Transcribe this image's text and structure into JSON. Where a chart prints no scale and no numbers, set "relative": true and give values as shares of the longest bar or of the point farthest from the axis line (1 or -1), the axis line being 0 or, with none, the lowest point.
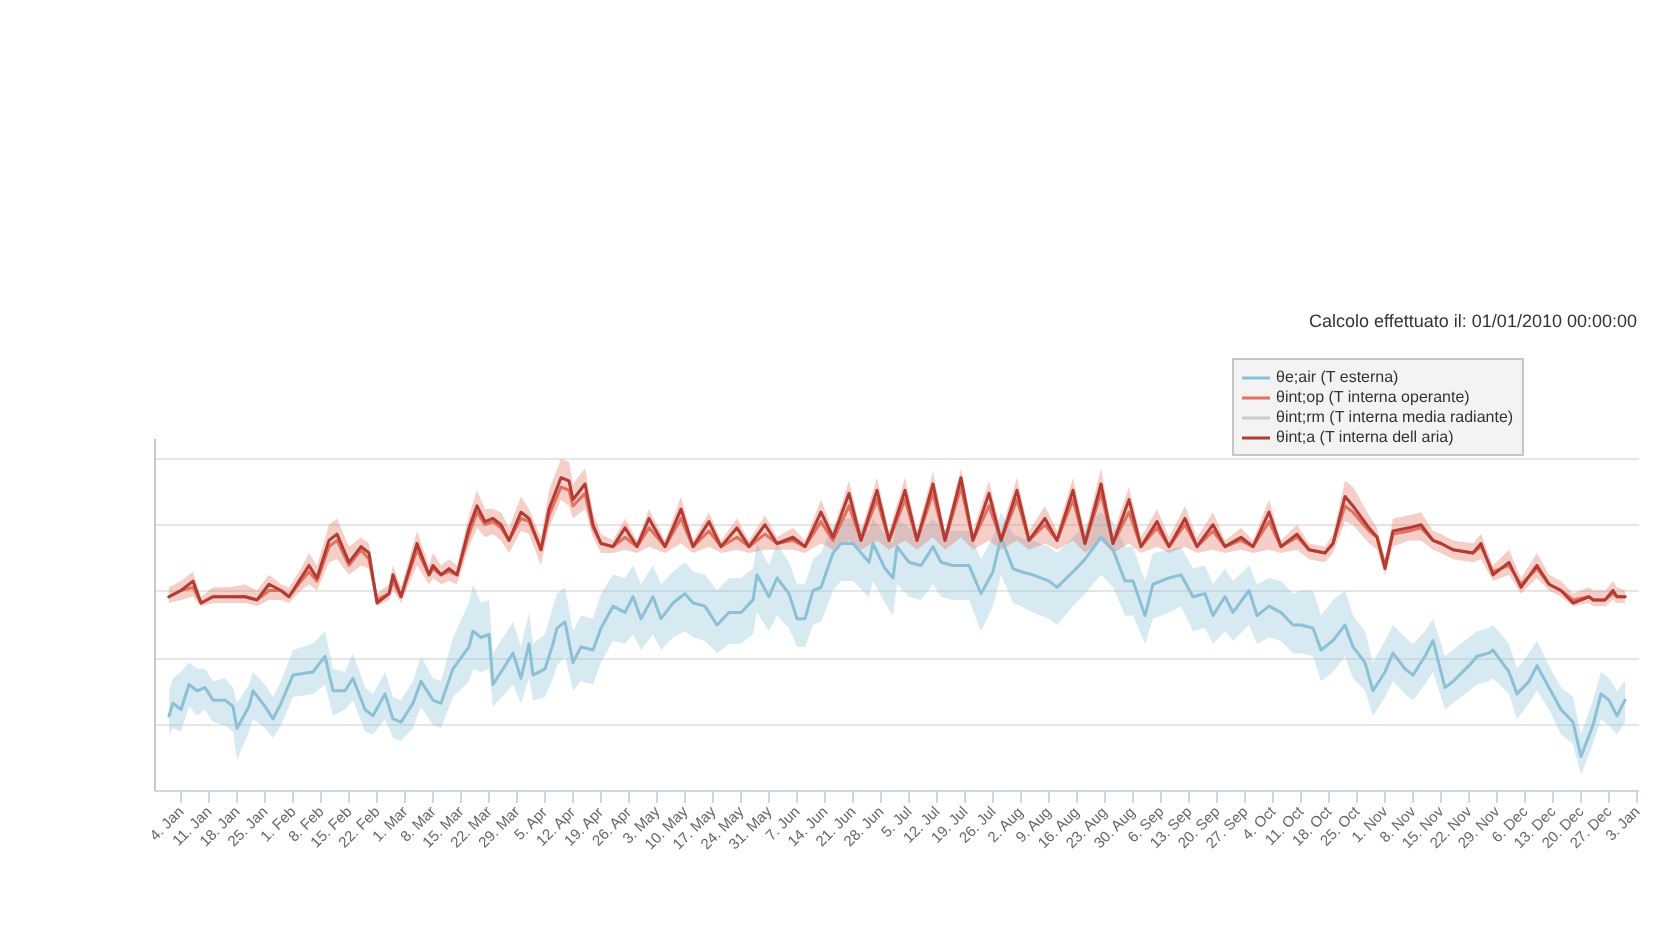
{
  "chart_data": {
    "type": "line",
    "relative": true,
    "annotations": [
      "Calcolo effettuato il: 01/01/2010 00:00:00"
    ],
    "xlim": [
      "2009-12-28T12:00",
      "2011-01-03T12:00"
    ],
    "xticks": [
      {
        "value": "2010-01-04",
        "label": "4. Jan"
      },
      {
        "value": "2010-01-11",
        "label": "11. Jan"
      },
      {
        "value": "2010-01-18",
        "label": "18. Jan"
      },
      {
        "value": "2010-01-25",
        "label": "25. Jan"
      },
      {
        "value": "2010-02-01",
        "label": "1. Feb"
      },
      {
        "value": "2010-02-08",
        "label": "8. Feb"
      },
      {
        "value": "2010-02-15",
        "label": "15. Feb"
      },
      {
        "value": "2010-02-22",
        "label": "22. Feb"
      },
      {
        "value": "2010-03-01",
        "label": "1. Mar"
      },
      {
        "value": "2010-03-08",
        "label": "8. Mar"
      },
      {
        "value": "2010-03-15",
        "label": "15. Mar"
      },
      {
        "value": "2010-03-22",
        "label": "22. Mar"
      },
      {
        "value": "2010-03-29",
        "label": "29. Mar"
      },
      {
        "value": "2010-04-05",
        "label": "5. Apr"
      },
      {
        "value": "2010-04-12",
        "label": "12. Apr"
      },
      {
        "value": "2010-04-19",
        "label": "19. Apr"
      },
      {
        "value": "2010-04-26",
        "label": "26. Apr"
      },
      {
        "value": "2010-05-03",
        "label": "3. May"
      },
      {
        "value": "2010-05-10",
        "label": "10. May"
      },
      {
        "value": "2010-05-17",
        "label": "17. May"
      },
      {
        "value": "2010-05-24",
        "label": "24. May"
      },
      {
        "value": "2010-05-31",
        "label": "31. May"
      },
      {
        "value": "2010-06-07",
        "label": "7. Jun"
      },
      {
        "value": "2010-06-14",
        "label": "14. Jun"
      },
      {
        "value": "2010-06-21",
        "label": "21. Jun"
      },
      {
        "value": "2010-06-28",
        "label": "28. Jun"
      },
      {
        "value": "2010-07-05",
        "label": "5. Jul"
      },
      {
        "value": "2010-07-12",
        "label": "12. Jul"
      },
      {
        "value": "2010-07-19",
        "label": "19. Jul"
      },
      {
        "value": "2010-07-26",
        "label": "26. Jul"
      },
      {
        "value": "2010-08-02",
        "label": "2. Aug"
      },
      {
        "value": "2010-08-09",
        "label": "9. Aug"
      },
      {
        "value": "2010-08-16",
        "label": "16. Aug"
      },
      {
        "value": "2010-08-23",
        "label": "23. Aug"
      },
      {
        "value": "2010-08-30",
        "label": "30. Aug"
      },
      {
        "value": "2010-09-06",
        "label": "6. Sep"
      },
      {
        "value": "2010-09-13",
        "label": "13. Sep"
      },
      {
        "value": "2010-09-20",
        "label": "20. Sep"
      },
      {
        "value": "2010-09-27",
        "label": "27. Sep"
      },
      {
        "value": "2010-10-04",
        "label": "4. Oct"
      },
      {
        "value": "2010-10-11",
        "label": "11. Oct"
      },
      {
        "value": "2010-10-18",
        "label": "18. Oct"
      },
      {
        "value": "2010-10-25",
        "label": "25. Oct"
      },
      {
        "value": "2010-11-01",
        "label": "1. Nov"
      },
      {
        "value": "2010-11-08",
        "label": "8. Nov"
      },
      {
        "value": "2010-11-15",
        "label": "15. Nov"
      },
      {
        "value": "2010-11-22",
        "label": "22. Nov"
      },
      {
        "value": "2010-11-29",
        "label": "29. Nov"
      },
      {
        "value": "2010-12-06",
        "label": "6. Dec"
      },
      {
        "value": "2010-12-13",
        "label": "13. Dec"
      },
      {
        "value": "2010-12-20",
        "label": "20. Dec"
      },
      {
        "value": "2010-12-27",
        "label": "27. Dec"
      },
      {
        "value": "2011-01-03",
        "label": "3. Jan"
      }
    ],
    "grid": "y",
    "legend": "top right",
    "tick_labels": "x",
    "x": [
      "2010-01-01",
      "2010-01-04",
      "2010-01-07",
      "2010-01-09",
      "2010-01-12",
      "2010-01-16",
      "2010-01-20",
      "2010-01-23",
      "2010-01-26",
      "2010-01-29",
      "2010-01-31",
      "2010-02-03",
      "2010-02-05",
      "2010-02-07",
      "2010-02-10",
      "2010-02-12",
      "2010-02-15",
      "2010-02-18",
      "2010-02-20",
      "2010-02-22",
      "2010-02-25",
      "2010-02-26",
      "2010-02-28",
      "2010-03-04",
      "2010-03-07",
      "2010-03-08",
      "2010-03-10",
      "2010-03-12",
      "2010-03-14",
      "2010-03-17",
      "2010-03-19",
      "2010-03-21",
      "2010-03-23",
      "2010-03-25",
      "2010-03-27",
      "2010-03-30",
      "2010-04-01",
      "2010-04-04",
      "2010-04-06",
      "2010-04-09",
      "2010-04-11",
      "2010-04-12",
      "2010-04-15",
      "2010-04-17",
      "2010-04-19",
      "2010-04-22",
      "2010-04-25",
      "2010-04-28",
      "2010-05-01",
      "2010-05-05",
      "2010-05-09",
      "2010-05-12",
      "2010-05-16",
      "2010-05-19",
      "2010-05-23",
      "2010-05-26",
      "2010-05-30",
      "2010-06-02",
      "2010-06-06",
      "2010-06-09",
      "2010-06-13",
      "2010-06-16",
      "2010-06-20",
      "2010-06-23",
      "2010-06-27",
      "2010-06-30",
      "2010-07-04",
      "2010-07-07",
      "2010-07-11",
      "2010-07-14",
      "2010-07-18",
      "2010-07-21",
      "2010-07-25",
      "2010-07-28",
      "2010-08-01",
      "2010-08-04",
      "2010-08-08",
      "2010-08-11",
      "2010-08-15",
      "2010-08-18",
      "2010-08-22",
      "2010-08-25",
      "2010-08-29",
      "2010-09-01",
      "2010-09-05",
      "2010-09-08",
      "2010-09-12",
      "2010-09-15",
      "2010-09-19",
      "2010-09-22",
      "2010-09-26",
      "2010-09-29",
      "2010-10-03",
      "2010-10-06",
      "2010-10-10",
      "2010-10-13",
      "2010-10-17",
      "2010-10-19",
      "2010-10-22",
      "2010-10-24",
      "2010-10-28",
      "2010-10-30",
      "2010-11-01",
      "2010-11-03",
      "2010-11-07",
      "2010-11-10",
      "2010-11-13",
      "2010-11-15",
      "2010-11-18",
      "2010-11-23",
      "2010-11-25",
      "2010-11-28",
      "2010-12-02",
      "2010-12-05",
      "2010-12-09",
      "2010-12-12",
      "2010-12-15",
      "2010-12-18",
      "2010-12-22",
      "2010-12-23",
      "2010-12-26",
      "2010-12-28",
      "2010-12-29",
      "2010-12-31"
    ],
    "series": [
      {
        "name": "θe;air (T esterna)",
        "color": "#8cc0d6",
        "x": [
          "2010-01-01",
          "2010-01-02",
          "2010-01-04",
          "2010-01-06",
          "2010-01-08",
          "2010-01-10",
          "2010-01-12",
          "2010-01-15",
          "2010-01-17",
          "2010-01-18",
          "2010-01-21",
          "2010-01-22",
          "2010-01-25",
          "2010-01-27",
          "2010-01-29",
          "2010-02-01",
          "2010-02-06",
          "2010-02-09",
          "2010-02-11",
          "2010-02-14",
          "2010-02-16",
          "2010-02-19",
          "2010-02-21",
          "2010-02-24",
          "2010-02-26",
          "2010-02-28",
          "2010-03-03",
          "2010-03-05",
          "2010-03-08",
          "2010-03-10",
          "2010-03-13",
          "2010-03-17",
          "2010-03-18",
          "2010-03-20",
          "2010-03-22",
          "2010-03-23",
          "2010-03-26",
          "2010-03-28",
          "2010-03-30",
          "2010-04-01",
          "2010-04-02",
          "2010-04-05",
          "2010-04-07",
          "2010-04-08",
          "2010-04-10",
          "2010-04-12",
          "2010-04-14",
          "2010-04-17",
          "2010-04-19",
          "2010-04-22",
          "2010-04-25",
          "2010-04-27",
          "2010-04-29",
          "2010-05-02",
          "2010-05-04",
          "2010-05-07",
          "2010-05-10",
          "2010-05-12",
          "2010-05-15",
          "2010-05-18",
          "2010-05-21",
          "2010-05-24",
          "2010-05-27",
          "2010-05-28",
          "2010-05-31",
          "2010-06-02",
          "2010-06-05",
          "2010-06-07",
          "2010-06-09",
          "2010-06-11",
          "2010-06-13",
          "2010-06-16",
          "2010-06-18",
          "2010-06-21",
          "2010-06-25",
          "2010-06-26",
          "2010-06-29",
          "2010-07-01",
          "2010-07-02",
          "2010-07-05",
          "2010-07-08",
          "2010-07-11",
          "2010-07-13",
          "2010-07-16",
          "2010-07-20",
          "2010-07-23",
          "2010-07-26",
          "2010-07-28",
          "2010-07-31",
          "2010-08-02",
          "2010-08-05",
          "2010-08-09",
          "2010-08-11",
          "2010-08-15",
          "2010-08-18",
          "2010-08-22",
          "2010-08-25",
          "2010-08-28",
          "2010-08-30",
          "2010-09-02",
          "2010-09-04",
          "2010-09-08",
          "2010-09-11",
          "2010-09-14",
          "2010-09-17",
          "2010-09-19",
          "2010-09-22",
          "2010-09-24",
          "2010-09-28",
          "2010-09-30",
          "2010-10-03",
          "2010-10-06",
          "2010-10-09",
          "2010-10-11",
          "2010-10-14",
          "2010-10-16",
          "2010-10-19",
          "2010-10-22",
          "2010-10-24",
          "2010-10-27",
          "2010-10-29",
          "2010-11-01",
          "2010-11-03",
          "2010-11-06",
          "2010-11-08",
          "2010-11-11",
          "2010-11-13",
          "2010-11-16",
          "2010-11-18",
          "2010-11-22",
          "2010-11-24",
          "2010-11-27",
          "2010-11-28",
          "2010-12-02",
          "2010-12-04",
          "2010-12-07",
          "2010-12-09",
          "2010-12-12",
          "2010-12-15",
          "2010-12-18",
          "2010-12-20",
          "2010-12-23",
          "2010-12-25",
          "2010-12-27",
          "2010-12-29",
          "2010-12-31"
        ],
        "values": [
          0.24,
          0.28,
          0.26,
          0.34,
          0.32,
          0.33,
          0.29,
          0.29,
          0.27,
          0.2,
          0.27,
          0.32,
          0.27,
          0.23,
          0.28,
          0.37,
          0.38,
          0.43,
          0.32,
          0.32,
          0.36,
          0.26,
          0.24,
          0.31,
          0.23,
          0.22,
          0.28,
          0.35,
          0.29,
          0.28,
          0.39,
          0.46,
          0.51,
          0.49,
          0.5,
          0.34,
          0.4,
          0.44,
          0.36,
          0.47,
          0.37,
          0.39,
          0.47,
          0.52,
          0.54,
          0.41,
          0.46,
          0.45,
          0.52,
          0.59,
          0.57,
          0.62,
          0.55,
          0.62,
          0.55,
          0.6,
          0.63,
          0.6,
          0.59,
          0.53,
          0.57,
          0.57,
          0.61,
          0.69,
          0.62,
          0.68,
          0.63,
          0.55,
          0.55,
          0.64,
          0.65,
          0.76,
          0.79,
          0.79,
          0.73,
          0.79,
          0.71,
          0.68,
          0.78,
          0.73,
          0.72,
          0.78,
          0.73,
          0.72,
          0.72,
          0.63,
          0.7,
          0.81,
          0.71,
          0.7,
          0.69,
          0.67,
          0.65,
          0.7,
          0.74,
          0.81,
          0.77,
          0.67,
          0.67,
          0.56,
          0.66,
          0.68,
          0.69,
          0.62,
          0.63,
          0.56,
          0.62,
          0.57,
          0.64,
          0.56,
          0.59,
          0.57,
          0.53,
          0.53,
          0.52,
          0.45,
          0.48,
          0.53,
          0.46,
          0.41,
          0.32,
          0.38,
          0.44,
          0.39,
          0.37,
          0.43,
          0.48,
          0.33,
          0.35,
          0.4,
          0.43,
          0.44,
          0.45,
          0.38,
          0.31,
          0.35,
          0.4,
          0.33,
          0.26,
          0.22,
          0.11,
          0.21,
          0.31,
          0.29,
          0.24,
          0.29
        ],
        "lower": [
          0.18,
          0.2,
          0.19,
          0.27,
          0.24,
          0.26,
          0.22,
          0.21,
          0.19,
          0.1,
          0.19,
          0.23,
          0.2,
          0.17,
          0.21,
          0.3,
          0.31,
          0.34,
          0.24,
          0.26,
          0.29,
          0.19,
          0.18,
          0.23,
          0.17,
          0.16,
          0.2,
          0.27,
          0.21,
          0.2,
          0.3,
          0.35,
          0.39,
          0.38,
          0.39,
          0.27,
          0.31,
          0.34,
          0.28,
          0.36,
          0.29,
          0.3,
          0.36,
          0.4,
          0.43,
          0.32,
          0.35,
          0.34,
          0.41,
          0.48,
          0.47,
          0.5,
          0.45,
          0.5,
          0.45,
          0.49,
          0.51,
          0.49,
          0.48,
          0.44,
          0.47,
          0.47,
          0.5,
          0.57,
          0.51,
          0.56,
          0.52,
          0.46,
          0.46,
          0.53,
          0.54,
          0.64,
          0.67,
          0.67,
          0.62,
          0.67,
          0.6,
          0.56,
          0.66,
          0.62,
          0.61,
          0.66,
          0.62,
          0.61,
          0.61,
          0.51,
          0.59,
          0.69,
          0.6,
          0.59,
          0.57,
          0.55,
          0.53,
          0.59,
          0.63,
          0.69,
          0.65,
          0.56,
          0.56,
          0.47,
          0.55,
          0.57,
          0.59,
          0.51,
          0.52,
          0.47,
          0.51,
          0.48,
          0.53,
          0.47,
          0.49,
          0.48,
          0.44,
          0.44,
          0.43,
          0.35,
          0.38,
          0.43,
          0.36,
          0.32,
          0.24,
          0.3,
          0.35,
          0.31,
          0.29,
          0.34,
          0.38,
          0.26,
          0.28,
          0.32,
          0.34,
          0.35,
          0.36,
          0.31,
          0.23,
          0.28,
          0.32,
          0.26,
          0.18,
          0.15,
          0.05,
          0.15,
          0.23,
          0.21,
          0.18,
          0.22
        ],
        "upper": [
          0.32,
          0.36,
          0.38,
          0.41,
          0.39,
          0.39,
          0.35,
          0.36,
          0.33,
          0.28,
          0.34,
          0.38,
          0.34,
          0.3,
          0.35,
          0.45,
          0.47,
          0.51,
          0.39,
          0.38,
          0.44,
          0.33,
          0.31,
          0.38,
          0.3,
          0.29,
          0.35,
          0.43,
          0.36,
          0.35,
          0.49,
          0.6,
          0.66,
          0.6,
          0.61,
          0.44,
          0.5,
          0.54,
          0.46,
          0.57,
          0.47,
          0.5,
          0.59,
          0.63,
          0.65,
          0.51,
          0.56,
          0.55,
          0.63,
          0.69,
          0.68,
          0.72,
          0.66,
          0.72,
          0.66,
          0.7,
          0.73,
          0.7,
          0.69,
          0.64,
          0.68,
          0.68,
          0.71,
          0.79,
          0.72,
          0.79,
          0.73,
          0.66,
          0.66,
          0.74,
          0.76,
          0.85,
          0.87,
          0.87,
          0.83,
          0.87,
          0.82,
          0.79,
          0.87,
          0.84,
          0.83,
          0.87,
          0.84,
          0.83,
          0.83,
          0.74,
          0.81,
          0.89,
          0.82,
          0.81,
          0.8,
          0.78,
          0.76,
          0.81,
          0.85,
          0.89,
          0.86,
          0.78,
          0.78,
          0.67,
          0.76,
          0.77,
          0.78,
          0.71,
          0.72,
          0.66,
          0.71,
          0.67,
          0.72,
          0.66,
          0.68,
          0.67,
          0.63,
          0.64,
          0.64,
          0.56,
          0.61,
          0.64,
          0.56,
          0.51,
          0.41,
          0.48,
          0.53,
          0.49,
          0.47,
          0.51,
          0.55,
          0.43,
          0.45,
          0.49,
          0.51,
          0.52,
          0.53,
          0.47,
          0.39,
          0.44,
          0.48,
          0.4,
          0.33,
          0.3,
          0.18,
          0.29,
          0.38,
          0.36,
          0.32,
          0.35
        ]
      },
      {
        "name": "θint;op (T interna operante)",
        "color": "#e2725f",
        "values": [
          0.62,
          0.64,
          0.65,
          0.6,
          0.62,
          0.62,
          0.62,
          0.61,
          0.64,
          0.64,
          0.62,
          0.67,
          0.7,
          0.67,
          0.78,
          0.8,
          0.72,
          0.77,
          0.74,
          0.61,
          0.63,
          0.67,
          0.62,
          0.77,
          0.69,
          0.71,
          0.69,
          0.7,
          0.69,
          0.82,
          0.89,
          0.85,
          0.86,
          0.84,
          0.8,
          0.87,
          0.86,
          0.77,
          0.88,
          0.97,
          0.96,
          0.91,
          0.95,
          0.84,
          0.79,
          0.78,
          0.81,
          0.78,
          0.84,
          0.78,
          0.87,
          0.78,
          0.83,
          0.78,
          0.81,
          0.78,
          0.82,
          0.79,
          0.8,
          0.78,
          0.86,
          0.8,
          0.91,
          0.8,
          0.93,
          0.8,
          0.93,
          0.8,
          0.95,
          0.8,
          0.97,
          0.8,
          0.91,
          0.8,
          0.93,
          0.8,
          0.85,
          0.8,
          0.93,
          0.79,
          0.95,
          0.79,
          0.89,
          0.78,
          0.84,
          0.78,
          0.85,
          0.78,
          0.83,
          0.78,
          0.8,
          0.78,
          0.86,
          0.78,
          0.81,
          0.77,
          0.76,
          0.79,
          0.91,
          0.89,
          0.83,
          0.81,
          0.72,
          0.82,
          0.83,
          0.84,
          0.8,
          0.79,
          0.77,
          0.76,
          0.78,
          0.7,
          0.72,
          0.66,
          0.71,
          0.66,
          0.64,
          0.61,
          0.62,
          0.61,
          0.61,
          0.63,
          0.62,
          0.62
        ],
        "lower": [
          0.6,
          0.61,
          0.62,
          0.59,
          0.6,
          0.6,
          0.6,
          0.59,
          0.61,
          0.61,
          0.6,
          0.64,
          0.66,
          0.64,
          0.73,
          0.74,
          0.69,
          0.72,
          0.71,
          0.59,
          0.61,
          0.64,
          0.6,
          0.72,
          0.66,
          0.68,
          0.66,
          0.67,
          0.66,
          0.78,
          0.84,
          0.81,
          0.82,
          0.8,
          0.76,
          0.83,
          0.82,
          0.72,
          0.84,
          0.93,
          0.91,
          0.87,
          0.9,
          0.81,
          0.76,
          0.76,
          0.77,
          0.76,
          0.78,
          0.76,
          0.79,
          0.76,
          0.78,
          0.76,
          0.77,
          0.76,
          0.77,
          0.77,
          0.77,
          0.76,
          0.79,
          0.77,
          0.8,
          0.77,
          0.8,
          0.77,
          0.8,
          0.77,
          0.81,
          0.77,
          0.81,
          0.77,
          0.8,
          0.77,
          0.8,
          0.77,
          0.79,
          0.77,
          0.8,
          0.76,
          0.8,
          0.76,
          0.79,
          0.76,
          0.78,
          0.76,
          0.78,
          0.76,
          0.77,
          0.76,
          0.77,
          0.76,
          0.77,
          0.76,
          0.77,
          0.74,
          0.73,
          0.76,
          0.86,
          0.85,
          0.79,
          0.77,
          0.69,
          0.78,
          0.8,
          0.8,
          0.77,
          0.76,
          0.74,
          0.73,
          0.74,
          0.67,
          0.69,
          0.63,
          0.68,
          0.64,
          0.62,
          0.59,
          0.6,
          0.59,
          0.59,
          0.61,
          0.6,
          0.6
        ],
        "upper": [
          0.65,
          0.67,
          0.7,
          0.62,
          0.65,
          0.65,
          0.66,
          0.64,
          0.69,
          0.66,
          0.65,
          0.71,
          0.76,
          0.72,
          0.85,
          0.87,
          0.78,
          0.81,
          0.79,
          0.63,
          0.66,
          0.72,
          0.65,
          0.83,
          0.72,
          0.76,
          0.72,
          0.74,
          0.72,
          0.88,
          0.96,
          0.9,
          0.9,
          0.89,
          0.84,
          0.94,
          0.9,
          0.81,
          0.96,
          1.06,
          1.05,
          0.98,
          1.03,
          0.89,
          0.82,
          0.8,
          0.87,
          0.8,
          0.9,
          0.8,
          0.94,
          0.8,
          0.89,
          0.8,
          0.87,
          0.8,
          0.88,
          0.81,
          0.84,
          0.8,
          0.93,
          0.83,
          0.99,
          0.83,
          1.0,
          0.83,
          1.0,
          0.83,
          1.02,
          0.83,
          1.03,
          0.83,
          0.99,
          0.83,
          1.0,
          0.83,
          0.91,
          0.83,
          1.0,
          0.82,
          1.03,
          0.82,
          0.97,
          0.81,
          0.9,
          0.81,
          0.91,
          0.81,
          0.89,
          0.8,
          0.84,
          0.8,
          0.93,
          0.8,
          0.85,
          0.79,
          0.78,
          0.82,
          0.99,
          0.97,
          0.88,
          0.84,
          0.74,
          0.87,
          0.88,
          0.89,
          0.83,
          0.82,
          0.8,
          0.79,
          0.82,
          0.72,
          0.77,
          0.68,
          0.76,
          0.69,
          0.67,
          0.63,
          0.65,
          0.64,
          0.64,
          0.67,
          0.65,
          0.64
        ]
      },
      {
        "name": "θint;rm (T interna media radiante)",
        "color": "#cccccc",
        "values": [
          null,
          null,
          null,
          null,
          null,
          null,
          null,
          null,
          null,
          null,
          null,
          null,
          null,
          null,
          null,
          null,
          null,
          null,
          null,
          null,
          null,
          null,
          null,
          null,
          null,
          null,
          null,
          null,
          null,
          null,
          null,
          null,
          null,
          null,
          null,
          null,
          null,
          null,
          null,
          null,
          null,
          null,
          null,
          null,
          null,
          null,
          null,
          null,
          null,
          null,
          null,
          null,
          null,
          null,
          null,
          null,
          null,
          null,
          null,
          null,
          null,
          null,
          null,
          null,
          null,
          null,
          null,
          null,
          null,
          null,
          null,
          null,
          null,
          null,
          null,
          null,
          null,
          null,
          null,
          null,
          null,
          null,
          null,
          null,
          null,
          null,
          null,
          null,
          null,
          null,
          null,
          null,
          null,
          null,
          null,
          null,
          null,
          null,
          null,
          null,
          null,
          null,
          null,
          null,
          null,
          null,
          null,
          null,
          null,
          null,
          null,
          null,
          null,
          null,
          null,
          null,
          null,
          null,
          null,
          null,
          null,
          null,
          null,
          null
        ]
      },
      {
        "name": "θint;a (T interna dell aria)",
        "color": "#b23b33",
        "values": [
          0.62,
          0.64,
          0.67,
          0.6,
          0.62,
          0.62,
          0.62,
          0.61,
          0.66,
          0.64,
          0.62,
          0.68,
          0.72,
          0.68,
          0.8,
          0.82,
          0.73,
          0.78,
          0.76,
          0.6,
          0.63,
          0.69,
          0.62,
          0.79,
          0.69,
          0.72,
          0.69,
          0.71,
          0.69,
          0.84,
          0.91,
          0.86,
          0.87,
          0.85,
          0.8,
          0.89,
          0.87,
          0.77,
          0.9,
          1.0,
          0.99,
          0.93,
          0.98,
          0.85,
          0.79,
          0.78,
          0.84,
          0.78,
          0.87,
          0.78,
          0.9,
          0.78,
          0.86,
          0.78,
          0.84,
          0.78,
          0.85,
          0.79,
          0.81,
          0.78,
          0.89,
          0.81,
          0.95,
          0.8,
          0.96,
          0.8,
          0.96,
          0.8,
          0.98,
          0.8,
          1.0,
          0.8,
          0.95,
          0.8,
          0.96,
          0.8,
          0.87,
          0.8,
          0.96,
          0.79,
          0.98,
          0.79,
          0.93,
          0.78,
          0.86,
          0.78,
          0.87,
          0.78,
          0.85,
          0.78,
          0.81,
          0.78,
          0.89,
          0.78,
          0.82,
          0.77,
          0.76,
          0.79,
          0.94,
          0.91,
          0.84,
          0.81,
          0.71,
          0.83,
          0.84,
          0.85,
          0.8,
          0.79,
          0.77,
          0.76,
          0.79,
          0.69,
          0.73,
          0.65,
          0.72,
          0.66,
          0.64,
          0.6,
          0.62,
          0.61,
          0.61,
          0.64,
          0.62,
          0.62
        ]
      }
    ]
  }
}
